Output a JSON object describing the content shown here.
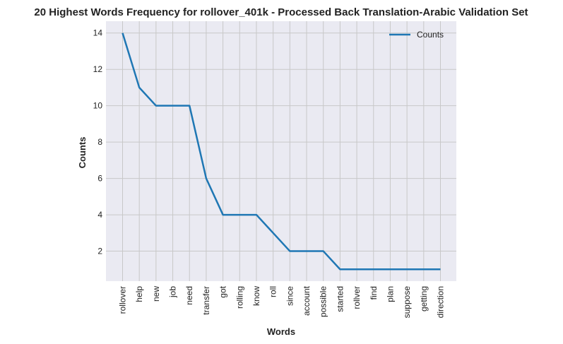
{
  "chart_data": {
    "type": "line",
    "title": "20 Highest Words Frequency for rollover_401k - Processed Back Translation-Arabic Validation Set",
    "xlabel": "Words",
    "ylabel": "Counts",
    "categories": [
      "rollover",
      "help",
      "new",
      "job",
      "need",
      "transfer",
      "got",
      "rolling",
      "know",
      "roll",
      "since",
      "account",
      "possible",
      "started",
      "rollver",
      "find",
      "plan",
      "suppose",
      "getting",
      "direction"
    ],
    "series": [
      {
        "name": "Counts",
        "values": [
          14,
          11,
          10,
          10,
          10,
          6,
          4,
          4,
          4,
          3,
          2,
          2,
          2,
          1,
          1,
          1,
          1,
          1,
          1,
          1
        ]
      }
    ],
    "ylim": [
      0.35,
      14.65
    ],
    "yticks": [
      2,
      4,
      6,
      8,
      10,
      12,
      14
    ],
    "grid": true,
    "legend_position": "top-right",
    "colors": {
      "line": "#1f77b4",
      "plot_background": "#eaeaf2",
      "grid": "#c8c8c8"
    }
  }
}
